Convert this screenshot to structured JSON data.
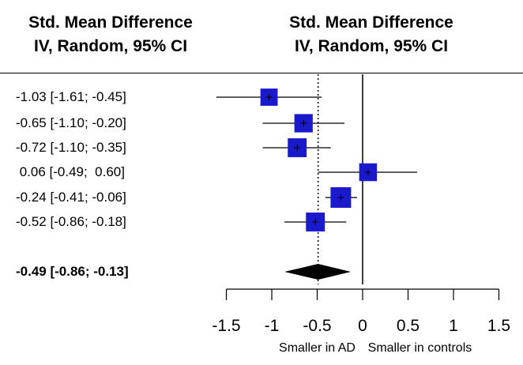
{
  "header": {
    "left_line1": "Std. Mean Difference",
    "left_line2": "IV, Random, 95% CI",
    "right_line1": "Std. Mean Difference",
    "right_line2": "IV, Random, 95% CI"
  },
  "chart_data": {
    "type": "forest",
    "title": "",
    "xlim": [
      -1.5,
      1.5
    ],
    "xticks": [
      -1.5,
      -1,
      -0.5,
      0,
      0.5,
      1,
      1.5
    ],
    "xtick_labels": [
      "-1.5",
      "-1",
      "-0.5",
      "0",
      "0.5",
      "1",
      "1.5"
    ],
    "null_line": 0,
    "pooled_reference_line": -0.49,
    "direction_labels": {
      "left": "Smaller in AD",
      "right": "Smaller in controls"
    },
    "marker_color": "#1a1acc",
    "studies": [
      {
        "estimate": -1.03,
        "lower": -1.61,
        "upper": -0.45,
        "weight": 0.7,
        "ci_text": "-1.03 [-1.61; -0.45]"
      },
      {
        "estimate": -0.65,
        "lower": -1.1,
        "upper": -0.2,
        "weight": 0.8,
        "ci_text": "-0.65 [-1.10; -0.20]"
      },
      {
        "estimate": -0.72,
        "lower": -1.1,
        "upper": -0.35,
        "weight": 0.85,
        "ci_text": "-0.72 [-1.10; -0.35]"
      },
      {
        "estimate": 0.06,
        "lower": -0.49,
        "upper": 0.6,
        "weight": 0.75,
        "ci_text": " 0.06 [-0.49;  0.60]"
      },
      {
        "estimate": -0.24,
        "lower": -0.41,
        "upper": -0.06,
        "weight": 1.0,
        "ci_text": "-0.24 [-0.41; -0.06]"
      },
      {
        "estimate": -0.52,
        "lower": -0.86,
        "upper": -0.18,
        "weight": 0.85,
        "ci_text": "-0.52 [-0.86; -0.18]"
      }
    ],
    "pooled": {
      "estimate": -0.49,
      "lower": -0.86,
      "upper": -0.13,
      "ci_text": "-0.49 [-0.86; -0.13]"
    }
  }
}
